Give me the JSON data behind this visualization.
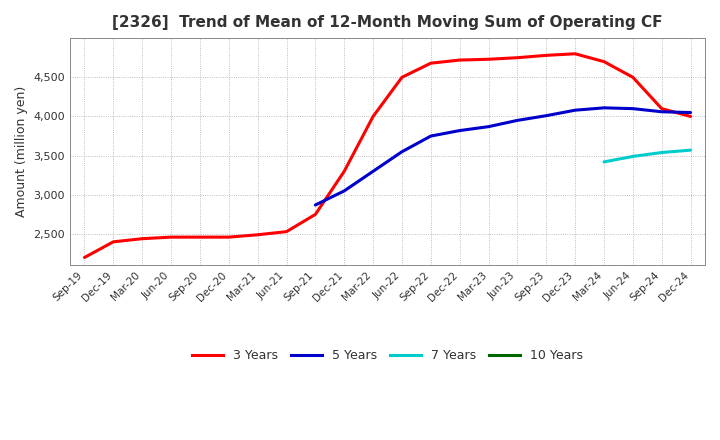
{
  "title": "[2326]  Trend of Mean of 12-Month Moving Sum of Operating CF",
  "ylabel": "Amount (million yen)",
  "title_color": "#333333",
  "grid_color": "#aaaaaa",
  "background_color": "#ffffff",
  "plot_bg_color": "#ffffff",
  "legend_entries": [
    "3 Years",
    "5 Years",
    "7 Years",
    "10 Years"
  ],
  "legend_colors": [
    "#ff0000",
    "#0000cc",
    "#00cccc",
    "#006600"
  ],
  "x_labels": [
    "Sep-19",
    "Dec-19",
    "Mar-20",
    "Jun-20",
    "Sep-20",
    "Dec-20",
    "Mar-21",
    "Jun-21",
    "Sep-21",
    "Dec-21",
    "Mar-22",
    "Jun-22",
    "Sep-22",
    "Dec-22",
    "Mar-23",
    "Jun-23",
    "Sep-23",
    "Dec-23",
    "Mar-24",
    "Jun-24",
    "Sep-24",
    "Dec-24"
  ],
  "ylim": [
    2100,
    5000
  ],
  "yticks": [
    2500,
    3000,
    3500,
    4000,
    4500
  ],
  "series_3y": [
    2200,
    2400,
    2440,
    2460,
    2460,
    2460,
    2490,
    2530,
    2750,
    3300,
    4000,
    4500,
    4680,
    4720,
    4730,
    4750,
    4780,
    4800,
    4700,
    4500,
    4100,
    4000
  ],
  "series_5y": [
    null,
    null,
    null,
    null,
    null,
    null,
    null,
    null,
    2870,
    3050,
    3300,
    3550,
    3750,
    3820,
    3870,
    3950,
    4010,
    4080,
    4110,
    4100,
    4060,
    4050
  ],
  "series_7y": [
    null,
    null,
    null,
    null,
    null,
    null,
    null,
    null,
    null,
    null,
    null,
    null,
    null,
    null,
    null,
    null,
    null,
    null,
    3420,
    3490,
    3540,
    3570
  ],
  "series_10y": [
    null,
    null,
    null,
    null,
    null,
    null,
    null,
    null,
    null,
    null,
    null,
    null,
    null,
    null,
    null,
    null,
    null,
    null,
    null,
    null,
    null,
    null
  ],
  "linewidth": 2.2
}
